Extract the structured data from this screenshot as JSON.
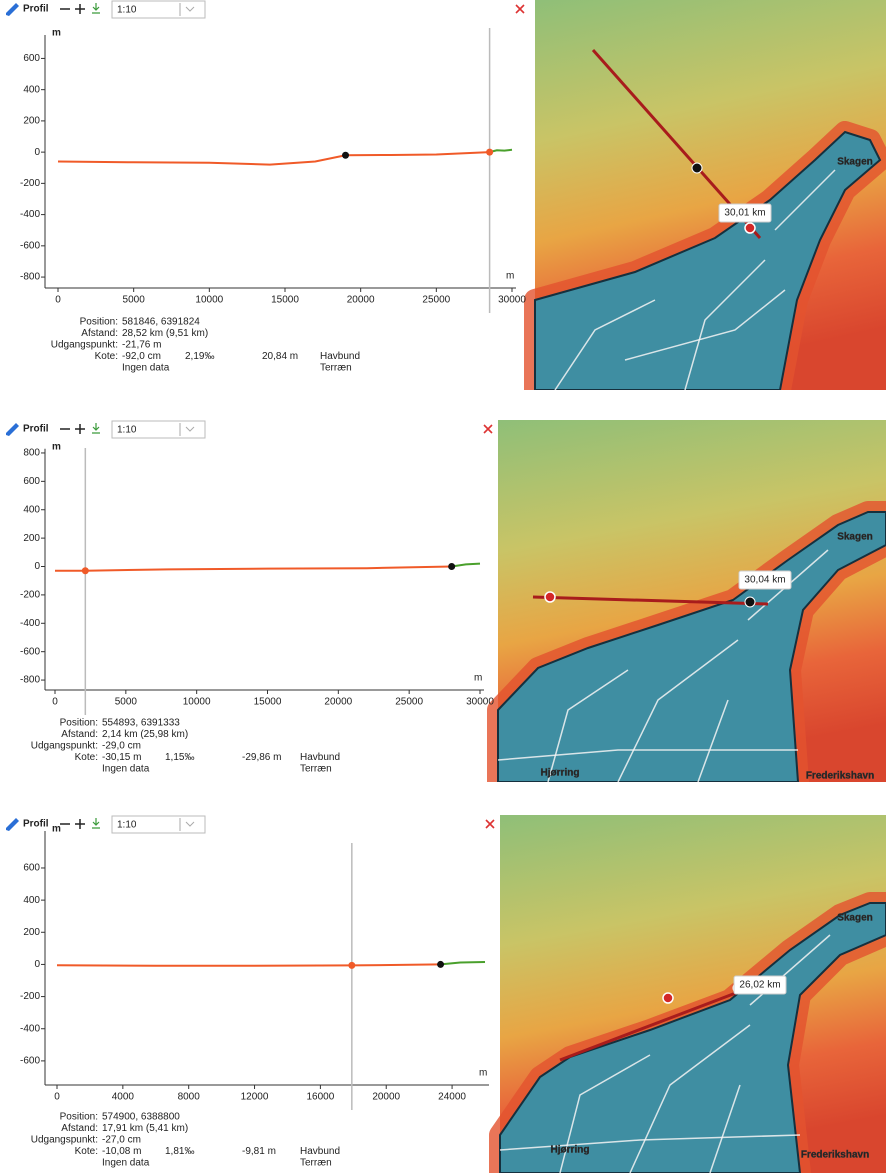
{
  "panels": [
    {
      "toolbar": {
        "title": "Profil",
        "scale": "1:10"
      },
      "chart_data": {
        "type": "line",
        "y_label": "m",
        "x_label": "m",
        "ylim": [
          -870,
          750
        ],
        "yticks": [
          -800,
          -600,
          -400,
          -200,
          0,
          200,
          400,
          600
        ],
        "xlim": [
          0,
          30000
        ],
        "xticks": [
          0,
          5000,
          10000,
          15000,
          20000,
          25000,
          30000
        ],
        "series": [
          {
            "name": "Havbund",
            "color": "#f05a28",
            "x": [
              0,
              5000,
              10000,
              14000,
              17000,
              19000,
              22000,
              25000,
              28520
            ],
            "values": [
              -60,
              -65,
              -68,
              -80,
              -60,
              -20,
              -18,
              -15,
              0
            ]
          },
          {
            "name": "Terræn",
            "color": "#4aa02c",
            "x": [
              28520,
              29000,
              29500,
              30000
            ],
            "values": [
              0,
              12,
              10,
              15
            ]
          }
        ],
        "cursor": {
          "x": 28520,
          "y": 0
        },
        "marker": {
          "x": 19000,
          "y": -20
        }
      },
      "info": {
        "position_label": "Position:",
        "position": "581846, 6391824",
        "distance_label": "Afstand:",
        "distance": "28,52 km (9,51 km)",
        "start_label": "Udgangspunkt:",
        "start": "-21,76 m",
        "elevation_label": "Kote:",
        "elevation": [
          "-92,0 cm",
          "2,19‰",
          "20,84 m"
        ],
        "terrain": "Ingen data"
      },
      "map": {
        "distance_tag": "30,01 km",
        "places": [
          "Skagen"
        ]
      }
    },
    {
      "toolbar": {
        "title": "Profil",
        "scale": "1:10"
      },
      "chart_data": {
        "type": "line",
        "y_label": "m",
        "x_label": "m",
        "ylim": [
          -870,
          830
        ],
        "yticks": [
          -800,
          -600,
          -400,
          -200,
          0,
          200,
          400,
          600,
          800
        ],
        "xlim": [
          0,
          30000
        ],
        "xticks": [
          0,
          5000,
          10000,
          15000,
          20000,
          25000,
          30000
        ],
        "series": [
          {
            "name": "Havbund",
            "color": "#f05a28",
            "x": [
              0,
              2140,
              8000,
              15000,
              22000,
              28000
            ],
            "values": [
              -30,
              -30,
              -20,
              -15,
              -12,
              0
            ]
          },
          {
            "name": "Terræn",
            "color": "#4aa02c",
            "x": [
              28000,
              29000,
              30000
            ],
            "values": [
              0,
              15,
              20
            ]
          }
        ],
        "cursor": {
          "x": 2140,
          "y": -30
        },
        "marker": {
          "x": 28000,
          "y": 0
        }
      },
      "info": {
        "position_label": "Position:",
        "position": "554893, 6391333",
        "distance_label": "Afstand:",
        "distance": "2,14 km (25,98 km)",
        "start_label": "Udgangspunkt:",
        "start": "-29,0 cm",
        "elevation_label": "Kote:",
        "elevation": [
          "-30,15 m",
          "1,15‰",
          "-29,86 m"
        ],
        "terrain": "Ingen data"
      },
      "map": {
        "distance_tag": "30,04 km",
        "places": [
          "Skagen",
          "Hjørring",
          "Frederikshavn"
        ]
      }
    },
    {
      "toolbar": {
        "title": "Profil",
        "scale": "1:10"
      },
      "chart_data": {
        "type": "line",
        "y_label": "m",
        "x_label": "m",
        "ylim": [
          -750,
          830
        ],
        "yticks": [
          -600,
          -400,
          -200,
          0,
          200,
          400,
          600
        ],
        "xlim": [
          0,
          26000
        ],
        "xticks": [
          0,
          4000,
          8000,
          12000,
          16000,
          20000,
          24000
        ],
        "series": [
          {
            "name": "Havbund",
            "color": "#f05a28",
            "x": [
              0,
              6000,
              12000,
              17910,
              23300
            ],
            "values": [
              -5,
              -8,
              -8,
              -6,
              0
            ]
          },
          {
            "name": "Terræn",
            "color": "#4aa02c",
            "x": [
              23300,
              24500,
              26000
            ],
            "values": [
              0,
              12,
              15
            ]
          }
        ],
        "cursor": {
          "x": 17910,
          "y": -6
        },
        "marker": {
          "x": 23300,
          "y": 0
        }
      },
      "info": {
        "position_label": "Position:",
        "position": "574900, 6388800",
        "distance_label": "Afstand:",
        "distance": "17,91 km (5,41 km)",
        "start_label": "Udgangspunkt:",
        "start": "-27,0 cm",
        "elevation_label": "Kote:",
        "elevation": [
          "-10,08 m",
          "1,81‰",
          "-9,81 m"
        ],
        "terrain": "Ingen data"
      },
      "map": {
        "distance_tag": "26,02 km",
        "places": [
          "Skagen",
          "Hjørring",
          "Frederikshavn"
        ]
      }
    }
  ]
}
